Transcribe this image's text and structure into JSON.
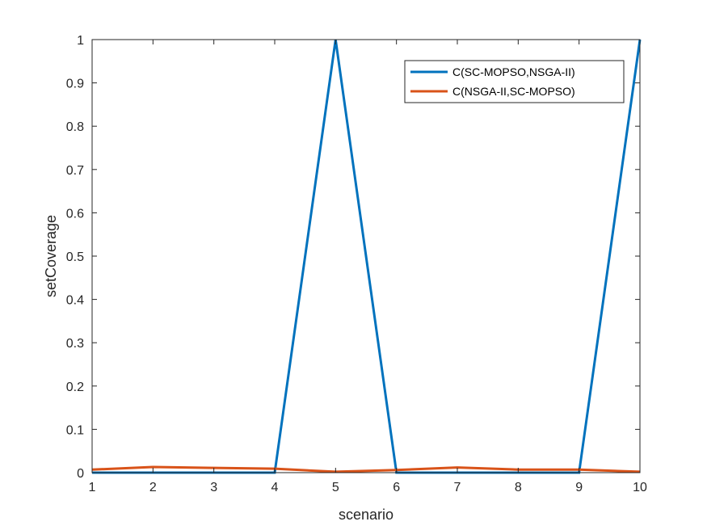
{
  "chart_data": {
    "type": "line",
    "title": "",
    "xlabel": "scenario",
    "ylabel": "setCoverage",
    "xlim": [
      1,
      10
    ],
    "ylim": [
      0,
      1
    ],
    "xticks": [
      "1",
      "2",
      "3",
      "4",
      "5",
      "6",
      "7",
      "8",
      "9",
      "10"
    ],
    "yticks": [
      "0",
      "0.1",
      "0.2",
      "0.3",
      "0.4",
      "0.5",
      "0.6",
      "0.7",
      "0.8",
      "0.9",
      "1"
    ],
    "grid": false,
    "legend_position": "top-right",
    "x": [
      1,
      2,
      3,
      4,
      5,
      6,
      7,
      8,
      9,
      10
    ],
    "series": [
      {
        "name": "C(SC-MOPSO,NSGA-II)",
        "color": "#0072bd",
        "values": [
          0,
          0,
          0,
          0,
          1,
          0,
          0,
          0,
          0,
          1
        ]
      },
      {
        "name": "C(NSGA-II,SC-MOPSO)",
        "color": "#d95319",
        "values": [
          0.007,
          0.013,
          0.011,
          0.009,
          0.002,
          0.006,
          0.012,
          0.007,
          0.007,
          0.002
        ]
      }
    ]
  }
}
